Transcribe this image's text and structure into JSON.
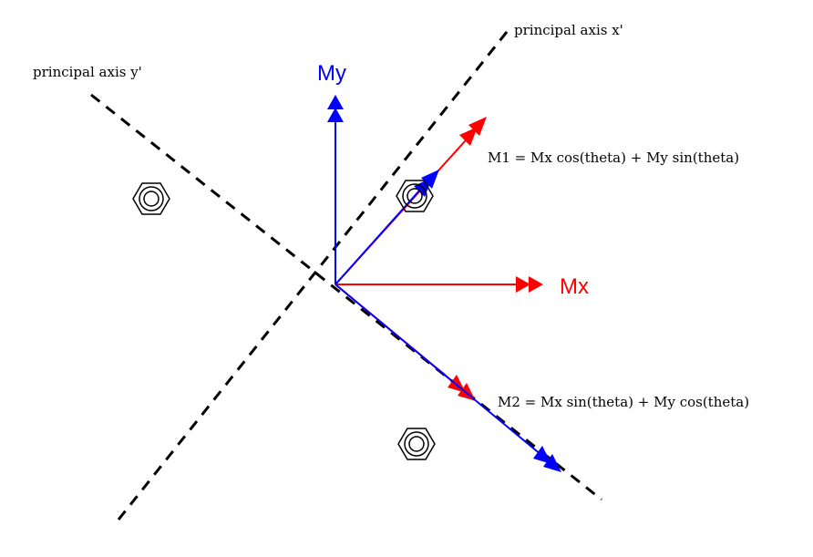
{
  "labels": {
    "axis_x_prime": "principal axis x'",
    "axis_y_prime": "principal axis y'",
    "my": "My",
    "mx": "Mx",
    "m1_formula": "M1 = Mx cos(theta) + My sin(theta)",
    "m2_formula": "M2 = Mx sin(theta) + My cos(theta)"
  },
  "colors": {
    "mx": "#ff0000",
    "my": "#0000ff",
    "axis": "#000000",
    "bolt": "#000000",
    "background": "#ffffff"
  },
  "icons": {
    "bolt": "hex-nut-icon"
  }
}
